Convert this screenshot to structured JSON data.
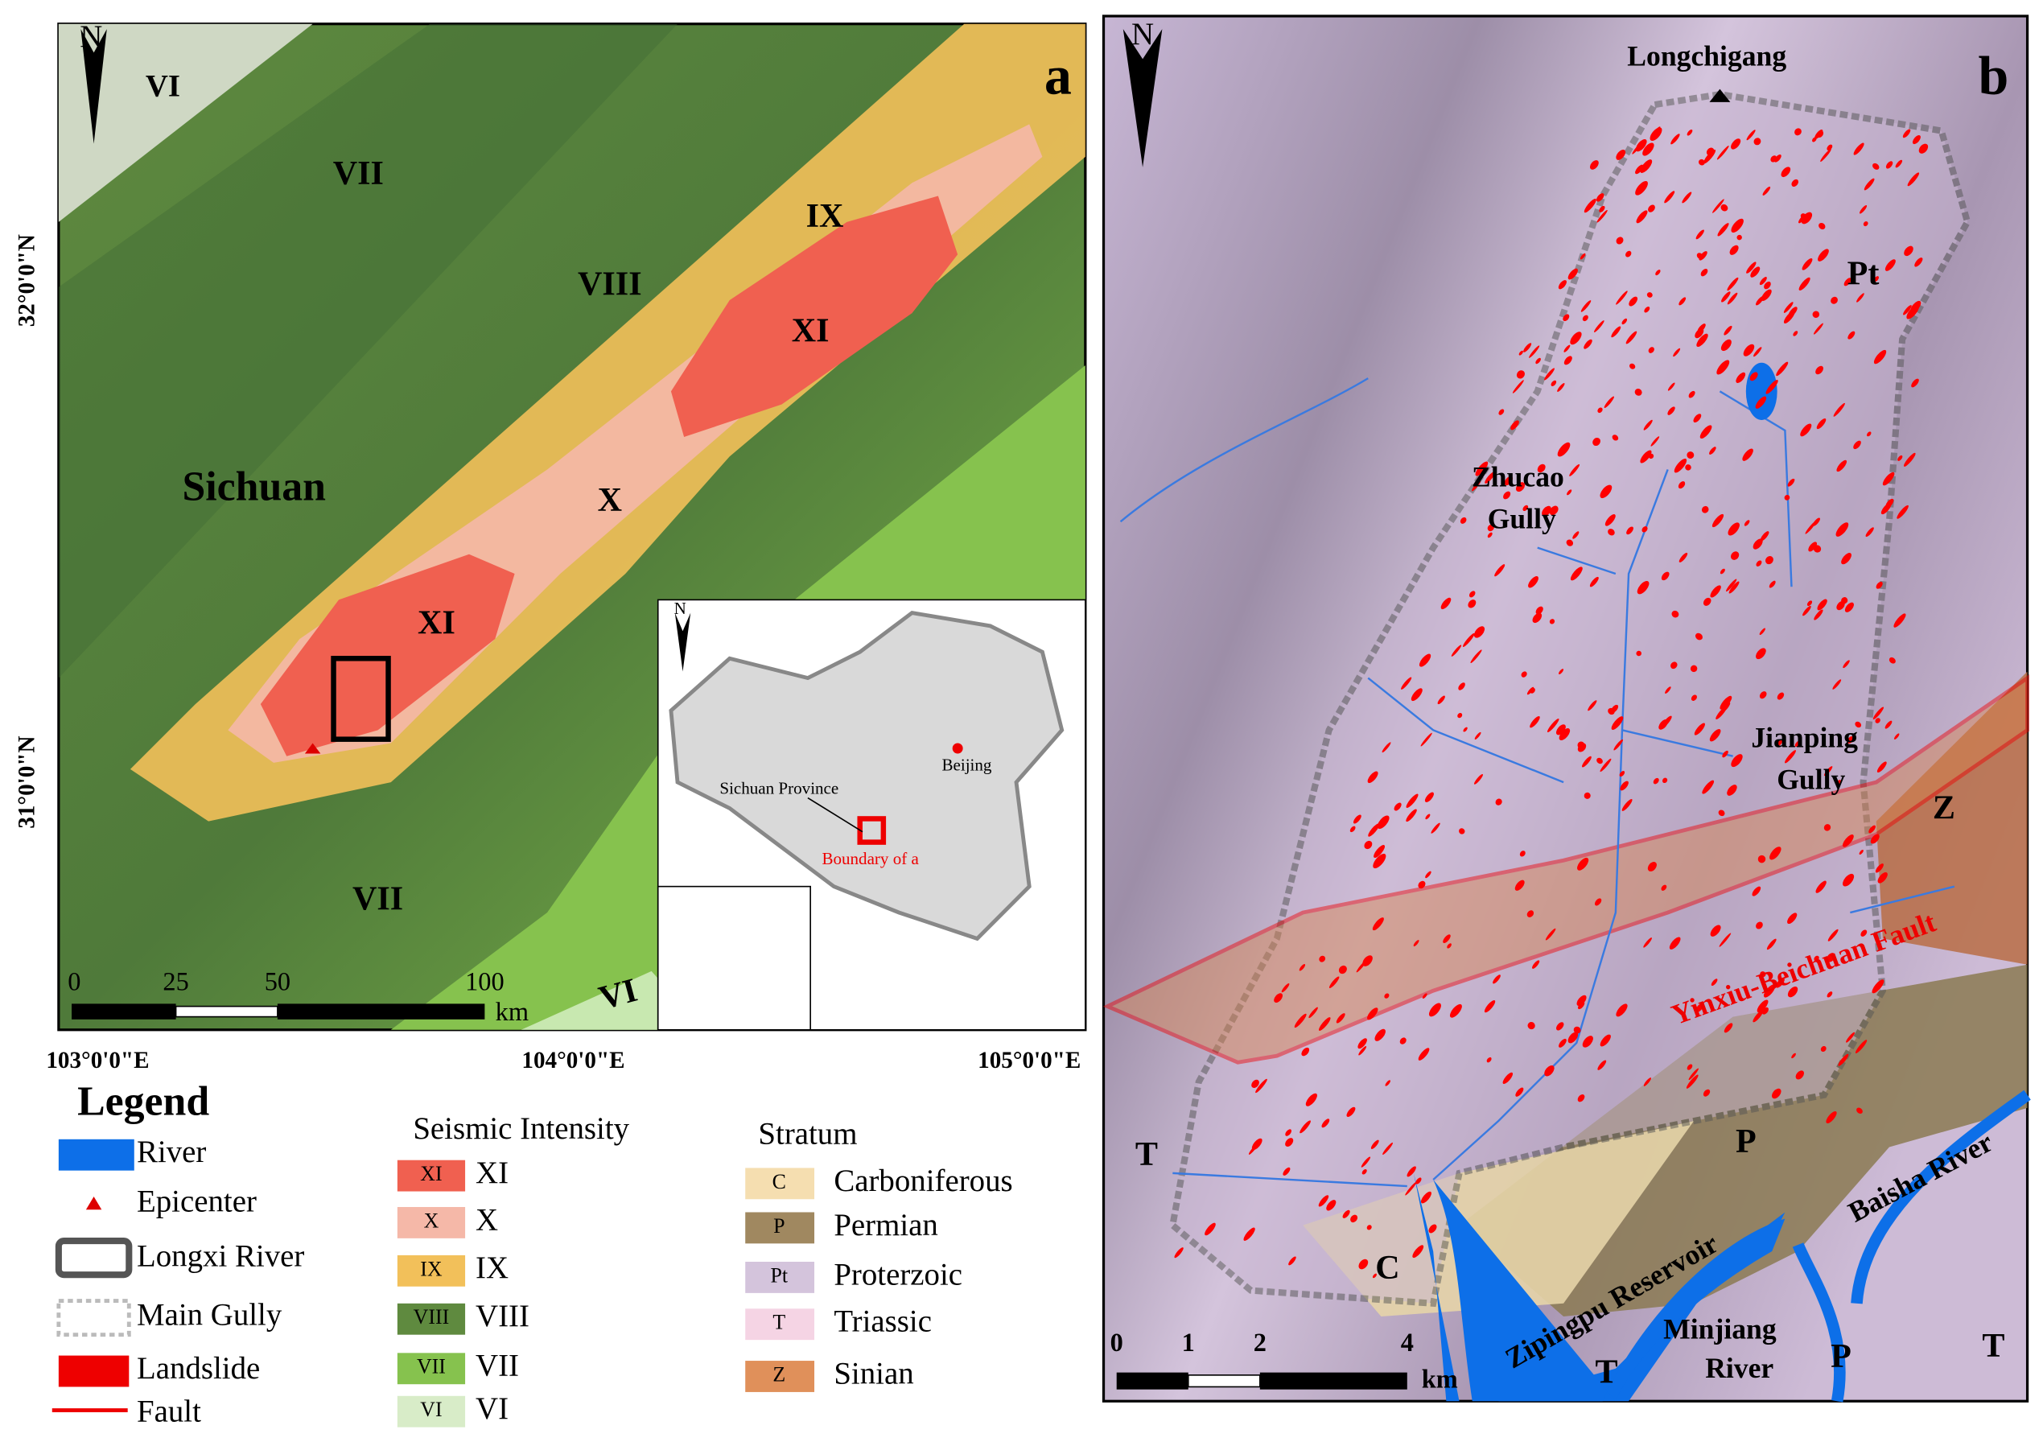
{
  "panel_a": {
    "label": "a",
    "north": "N",
    "intensity_labels": [
      "VI",
      "VII",
      "VIII",
      "IX",
      "XI",
      "X",
      "XI",
      "VII",
      "VI"
    ],
    "region": "Sichuan",
    "latitudes": [
      "32°0'0\"N",
      "31°0'0\"N"
    ],
    "longitudes": [
      "103°0'0\"E",
      "104°0'0\"E",
      "105°0'0\"E"
    ],
    "scale": {
      "ticks": [
        0,
        25,
        50,
        100
      ],
      "unit": "km"
    },
    "inset": {
      "north": "N",
      "capital": "Beijing",
      "province": "Sichuan Province",
      "boundary": "Boundary of a"
    }
  },
  "panel_b": {
    "label": "b",
    "north": "N",
    "summit": "Longchigang",
    "strata_labels": [
      "Pt",
      "Z",
      "T",
      "P",
      "C",
      "P",
      "T",
      "T"
    ],
    "gullies": [
      {
        "lines": [
          "Zhucao",
          "Gully"
        ]
      },
      {
        "lines": [
          "Jianping",
          "Gully"
        ]
      }
    ],
    "fault": "Yinxiu-Beichuan Fault",
    "baisha": "Baisha River",
    "reservoir": "Zipingpu Reservoir",
    "minjiang": {
      "lines": [
        "Minjiang",
        "River"
      ]
    },
    "scale": {
      "ticks": [
        0,
        1,
        2,
        4
      ],
      "unit": "km"
    }
  },
  "legend": {
    "title": "Legend",
    "items": [
      "River",
      "Epicenter",
      "Longxi River",
      "Main Gully",
      "Landslide",
      "Fault"
    ],
    "seismic": {
      "title": "Seismic  Intensity",
      "items": [
        {
          "code": "XI",
          "label": "XI"
        },
        {
          "code": "X",
          "label": "X"
        },
        {
          "code": "IX",
          "label": "IX"
        },
        {
          "code": "VIII",
          "label": "VIII"
        },
        {
          "code": "VII",
          "label": "VII"
        },
        {
          "code": "VI",
          "label": "VI"
        }
      ]
    },
    "stratum": {
      "title": "Stratum",
      "items": [
        {
          "code": "C",
          "label": "Carboniferous"
        },
        {
          "code": "P",
          "label": "Permian"
        },
        {
          "code": "Pt",
          "label": "Proterzoic"
        },
        {
          "code": "T",
          "label": "Triassic"
        },
        {
          "code": "Z",
          "label": "Sinian"
        }
      ]
    }
  }
}
